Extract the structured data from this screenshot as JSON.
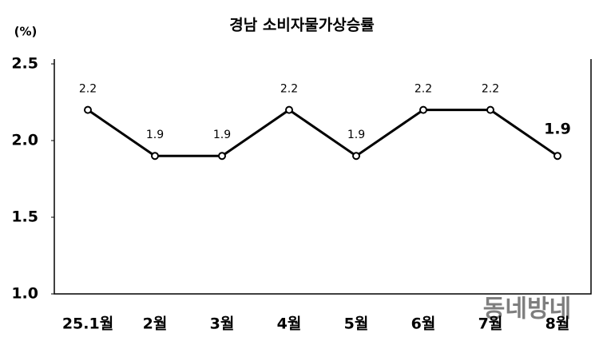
{
  "chart_data": {
    "type": "line",
    "title": "경남 소비자물가상승률",
    "y_unit": "(%)",
    "categories": [
      "25.1월",
      "2월",
      "3월",
      "4월",
      "5월",
      "6월",
      "7월",
      "8월"
    ],
    "series": [
      {
        "name": "경남 소비자물가상승률",
        "color": "#000000",
        "values": [
          2.2,
          1.9,
          1.9,
          2.2,
          1.9,
          2.2,
          2.2,
          1.9
        ],
        "value_label_colors": [
          "#000000",
          "#000000",
          "#000000",
          "#000000",
          "#000000",
          "#000000",
          "#000000",
          "#e60000"
        ]
      }
    ],
    "ylim": [
      1.0,
      2.5
    ],
    "yticks": [
      {
        "value": 1.0,
        "label": "1.0"
      },
      1.5,
      {
        "value": 2.0,
        "label": "2.0"
      },
      2.5
    ],
    "grid": false,
    "watermark": "동네방네"
  }
}
